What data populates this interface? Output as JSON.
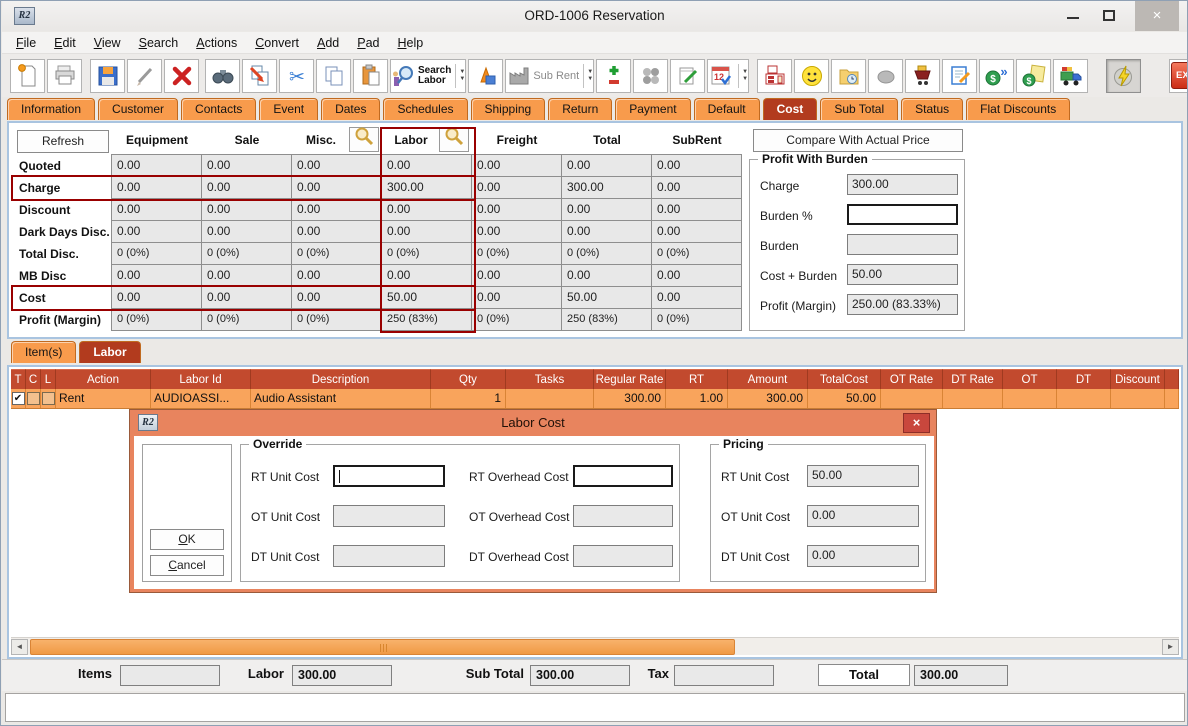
{
  "window": {
    "title": "ORD-1006 Reservation",
    "app_logo": "R2",
    "close_glyph": "×",
    "controls": [
      "minimize-icon",
      "maximize-icon",
      "close-icon"
    ]
  },
  "menu": {
    "items": [
      "File",
      "Edit",
      "View",
      "Search",
      "Actions",
      "Convert",
      "Add",
      "Pad",
      "Help"
    ]
  },
  "toolbar": {
    "exit": "EXIT",
    "search_labor_line1": "Search",
    "search_labor_line2": "Labor",
    "sub_rent": "Sub Rent",
    "buttons": [
      {
        "icon": "new-document-icon"
      },
      {
        "icon": "print-icon"
      },
      {
        "icon": "save-icon",
        "gap": 6
      },
      {
        "icon": "edit-pencil-icon"
      },
      {
        "icon": "delete-icon"
      },
      {
        "icon": "find-binoculars-icon",
        "gap": 4
      },
      {
        "icon": "replace-document-icon"
      },
      {
        "icon": "cut-scissors-icon"
      },
      {
        "icon": "copy-icon"
      },
      {
        "icon": "paste-icon"
      },
      {
        "icon": "search-labor-icon",
        "label": "search_labor",
        "arrows": true
      },
      {
        "icon": "3d-shapes-icon"
      },
      {
        "icon": "sub-rent-factory-icon",
        "label": "sub_rent",
        "arrows": true
      },
      {
        "icon": "add-item-icon"
      },
      {
        "icon": "people-gray-icon"
      },
      {
        "icon": "notepad-edit-icon"
      },
      {
        "icon": "calendar-12-icon",
        "arrows": true
      },
      {
        "icon": "fax-icon",
        "gap": 6
      },
      {
        "icon": "smiley-icon"
      },
      {
        "icon": "folder-time-icon"
      },
      {
        "icon": "stone-gray-icon"
      },
      {
        "icon": "cart-documents-icon"
      },
      {
        "icon": "note-edit-icon"
      },
      {
        "icon": "dollar-forward-icon"
      },
      {
        "icon": "dollar-invoice-icon"
      },
      {
        "icon": "delivery-truck-icon"
      },
      {
        "icon": "quick-launch-lightning-icon",
        "pressed": true,
        "gap": 16
      },
      {
        "icon": "exit-icon",
        "exit": true,
        "gap": 26
      }
    ]
  },
  "main_tabs": {
    "active": "Cost",
    "items": [
      "Information",
      "Customer",
      "Contacts",
      "Event",
      "Dates",
      "Schedules",
      "Shipping",
      "Return",
      "Payment",
      "Default",
      "Cost",
      "Sub Total",
      "Status",
      "Flat Discounts"
    ]
  },
  "cost_grid": {
    "refresh": "Refresh",
    "columns": [
      "Equipment",
      "Sale",
      "Misc.",
      "Labor",
      "Freight",
      "Total",
      "SubRent"
    ],
    "magnifier_columns": [
      "Misc.",
      "Labor"
    ],
    "highlight_column": "Labor",
    "highlight_rows": [
      "Charge",
      "Cost"
    ],
    "rows": [
      {
        "label": "Quoted",
        "values": [
          "0.00",
          "0.00",
          "0.00",
          "0.00",
          "0.00",
          "0.00",
          "0.00"
        ]
      },
      {
        "label": "Charge",
        "values": [
          "0.00",
          "0.00",
          "0.00",
          "300.00",
          "0.00",
          "300.00",
          "0.00"
        ]
      },
      {
        "label": "Discount",
        "values": [
          "0.00",
          "0.00",
          "0.00",
          "0.00",
          "0.00",
          "0.00",
          "0.00"
        ]
      },
      {
        "label": "Dark Days Disc.",
        "values": [
          "0.00",
          "0.00",
          "0.00",
          "0.00",
          "0.00",
          "0.00",
          "0.00"
        ]
      },
      {
        "label": "Total Disc.",
        "values": [
          "0 (0%)",
          "0 (0%)",
          "0 (0%)",
          "0 (0%)",
          "0 (0%)",
          "0 (0%)",
          "0 (0%)"
        ]
      },
      {
        "label": "MB Disc",
        "values": [
          "0.00",
          "0.00",
          "0.00",
          "0.00",
          "0.00",
          "0.00",
          "0.00"
        ]
      },
      {
        "label": "Cost",
        "values": [
          "0.00",
          "0.00",
          "0.00",
          "50.00",
          "0.00",
          "50.00",
          "0.00"
        ]
      },
      {
        "label": "Profit (Margin)",
        "values": [
          "0 (0%)",
          "0 (0%)",
          "0 (0%)",
          "250 (83%)",
          "0 (0%)",
          "250 (83%)",
          "0 (0%)"
        ]
      }
    ]
  },
  "burden_panel": {
    "compare_button": "Compare With Actual Price",
    "title": "Profit With Burden",
    "fields": [
      {
        "label": "Charge",
        "value": "300.00",
        "editable": false
      },
      {
        "label": "Burden %",
        "value": "",
        "editable": true
      },
      {
        "label": "Burden",
        "value": "",
        "editable": false
      },
      {
        "label": "Cost + Burden",
        "value": "50.00",
        "editable": false
      },
      {
        "label": "Profit (Margin)",
        "value": "250.00 (83.33%)",
        "editable": false
      }
    ]
  },
  "item_tabs": {
    "active": "Labor",
    "items": [
      "Item(s)",
      "Labor"
    ]
  },
  "labor_table": {
    "columns": [
      "T",
      "C",
      "L",
      "Action",
      "Labor Id",
      "Description",
      "Qty",
      "Tasks",
      "Regular Rate",
      "RT",
      "Amount",
      "TotalCost",
      "OT Rate",
      "DT Rate",
      "OT",
      "DT",
      "Discount"
    ],
    "rows": [
      {
        "t": "checked",
        "c": "unchecked",
        "l": "unchecked",
        "cells": [
          "Rent",
          "AUDIOASSI...",
          "Audio Assistant",
          "1",
          "",
          "300.00",
          "1.00",
          "300.00",
          "50.00",
          "",
          "",
          "",
          "",
          ""
        ]
      }
    ]
  },
  "dialog": {
    "title": "Labor Cost",
    "logo": "R2",
    "ok": "OK",
    "cancel": "Cancel",
    "override": {
      "title": "Override",
      "fields": [
        {
          "label": "RT Unit Cost",
          "value": "",
          "enabled": true
        },
        {
          "label": "RT Overhead Cost",
          "value": "",
          "enabled": true
        },
        {
          "label": "OT Unit Cost",
          "value": "",
          "enabled": false
        },
        {
          "label": "OT Overhead Cost",
          "value": "",
          "enabled": false
        },
        {
          "label": "DT Unit Cost",
          "value": "",
          "enabled": false
        },
        {
          "label": "DT Overhead Cost",
          "value": "",
          "enabled": false
        }
      ]
    },
    "pricing": {
      "title": "Pricing",
      "fields": [
        {
          "label": "RT Unit Cost",
          "value": "50.00"
        },
        {
          "label": "OT Unit Cost",
          "value": "0.00"
        },
        {
          "label": "DT Unit Cost",
          "value": "0.00"
        }
      ]
    }
  },
  "totals": {
    "fields": [
      {
        "label": "Items",
        "value": "",
        "boxed": false
      },
      {
        "label": "Labor",
        "value": "300.00",
        "boxed": false
      },
      {
        "label": "Sub Total",
        "value": "300.00",
        "boxed": false
      },
      {
        "label": "Tax",
        "value": "",
        "boxed": false
      },
      {
        "label": "Total",
        "value": "300.00",
        "boxed": true
      }
    ]
  },
  "colors": {
    "tab_orange": "#f89b4c",
    "active_tab_red": "#b23b1e",
    "table_header_rust": "#c24a2e",
    "row_orange": "#f9a45c",
    "dialog_salmon": "#e8845e",
    "dialog_close_red": "#c9473d",
    "highlight_red": "#990000",
    "scroll_thumb_orange": "#f09a45"
  }
}
